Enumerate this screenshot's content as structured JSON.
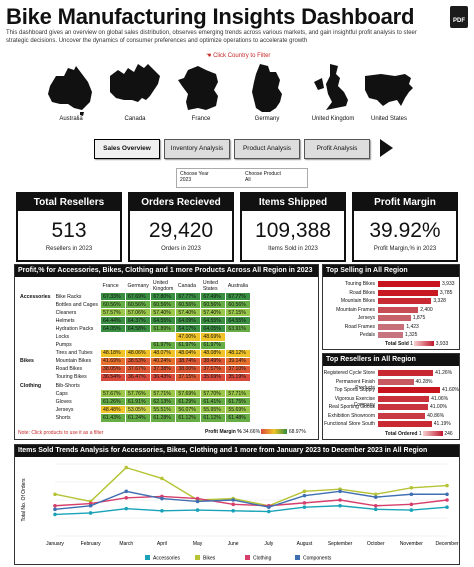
{
  "header": {
    "title": "Bike Manufacturing Insights Dashboard",
    "subtitle": "This dashboard gives an overview on global sales distribution, observes emerging trends across various markets, and gain insightful profit analysis to steer strategic decisions. Uncover the dynamics of consumer preferences and optimize operations to accelerate growth",
    "pdf_label": "PDF",
    "filter_hint": "Click Country to Filter"
  },
  "countries": [
    "Australia",
    "Canada",
    "France",
    "Germany",
    "United Kingdom",
    "United States"
  ],
  "nav": {
    "tabs": [
      "Sales Overview",
      "Inventory Analysis",
      "Product Analysis",
      "Profit Analysis"
    ],
    "active": "Sales Overview"
  },
  "chooser": {
    "year_label": "Choose Year",
    "year_value": "2023",
    "product_label": "Choose Product",
    "product_value": "All"
  },
  "kpis": [
    {
      "title": "Total Resellers",
      "value": "513",
      "sub": "Resellers in 2023"
    },
    {
      "title": "Orders Recieved",
      "value": "29,420",
      "sub": "Orders in 2023"
    },
    {
      "title": "Items Shipped",
      "value": "109,388",
      "sub": "Items Sold in 2023"
    },
    {
      "title": "Profit Margin",
      "value": "39.92%",
      "sub": "Profit Margin,% in 2023"
    }
  ],
  "heatmap": {
    "title": "Profit,% for Accessories, Bikes, Clothing and 1 more Products Across All Region in 2023",
    "columns": [
      "France",
      "Germany",
      "United Kingdom",
      "Canada",
      "United States",
      "Australia"
    ],
    "rows": [
      {
        "cat": "Accessories",
        "sub": "Bike Racks",
        "vals": [
          "67.33%",
          "67.69%",
          "67.80%",
          "67.77%",
          "67.49%",
          "67.77%"
        ]
      },
      {
        "cat": "",
        "sub": "Bottles and Cages",
        "vals": [
          "60.56%",
          "60.56%",
          "60.56%",
          "60.56%",
          "60.56%",
          "60.56%"
        ]
      },
      {
        "cat": "",
        "sub": "Cleaners",
        "vals": [
          "57.57%",
          "57.06%",
          "57.40%",
          "57.40%",
          "57.40%",
          "57.15%"
        ]
      },
      {
        "cat": "",
        "sub": "Helmets",
        "vals": [
          "64.44%",
          "64.37%",
          "64.55%",
          "64.09%",
          "64.55%",
          "64.55%"
        ]
      },
      {
        "cat": "",
        "sub": "Hydration Packs",
        "vals": [
          "64.05%",
          "64.58%",
          "61.89%",
          "64.17%",
          "64.05%",
          "63.91%"
        ]
      },
      {
        "cat": "",
        "sub": "Locks",
        "vals": [
          "",
          "",
          "",
          "47.00%",
          "48.69%",
          ""
        ]
      },
      {
        "cat": "",
        "sub": "Pumps",
        "vals": [
          "",
          "",
          "61.97%",
          "61.97%",
          "61.97%",
          ""
        ]
      },
      {
        "cat": "",
        "sub": "Tires and Tubes",
        "vals": [
          "48.18%",
          "48.06%",
          "48.07%",
          "48.04%",
          "48.08%",
          "48.12%"
        ]
      },
      {
        "cat": "Bikes",
        "sub": "Mountain Bikes",
        "vals": [
          "41.69%",
          "38.53%",
          "40.24%",
          "38.74%",
          "38.49%",
          "39.14%"
        ]
      },
      {
        "cat": "",
        "sub": "Road Bikes",
        "vals": [
          "38.05%",
          "37.67%",
          "37.38%",
          "38.00%",
          "37.57%",
          "37.10%"
        ]
      },
      {
        "cat": "",
        "sub": "Touring Bikes",
        "vals": [
          "36.54%",
          "36.47%",
          "36.43%",
          "37.15%",
          "35.69%",
          "35.19%"
        ]
      },
      {
        "cat": "Clothing",
        "sub": "Bib-Shorts",
        "vals": [
          "",
          "",
          "",
          "",
          "",
          ""
        ]
      },
      {
        "cat": "",
        "sub": "Caps",
        "vals": [
          "57.67%",
          "57.76%",
          "57.71%",
          "57.69%",
          "57.70%",
          "57.71%"
        ]
      },
      {
        "cat": "",
        "sub": "Gloves",
        "vals": [
          "61.26%",
          "61.91%",
          "62.13%",
          "61.29%",
          "61.41%",
          "61.75%"
        ]
      },
      {
        "cat": "",
        "sub": "Jerseys",
        "vals": [
          "48.48%",
          "53.05%",
          "55.51%",
          "56.07%",
          "55.95%",
          "55.69%"
        ]
      },
      {
        "cat": "",
        "sub": "Shorts",
        "vals": [
          "61.43%",
          "61.24%",
          "61.28%",
          "61.12%",
          "61.12%",
          "61.48%"
        ]
      }
    ],
    "note": "Note: Click products to use it as a filter",
    "legend_label": "Profit Margin %",
    "legend_min": "34.66%",
    "legend_max": "68.97%"
  },
  "top_selling": {
    "title": "Top Selling in All Region",
    "items": [
      {
        "name": "Touring Bikes",
        "label": "3,933",
        "value": 3933
      },
      {
        "name": "Road Bikes",
        "label": "3,785",
        "value": 3785
      },
      {
        "name": "Mountain Bikes",
        "label": "3,328",
        "value": 3328
      },
      {
        "name": "Mountain Frames",
        "label": "2,400",
        "value": 2400
      },
      {
        "name": "Jerseys",
        "label": "1,875",
        "value": 1875
      },
      {
        "name": "Road Frames",
        "label": "1,423",
        "value": 1423
      },
      {
        "name": "Pedals",
        "label": "1,325",
        "value": 1325
      }
    ],
    "legend_label": "Total Sold",
    "legend_min": "1",
    "legend_max": "3,933"
  },
  "top_resellers": {
    "title": "Top Resellers in All Region",
    "items": [
      {
        "name": "Registered Cycle Store",
        "label": "41.26%",
        "value": 41.26
      },
      {
        "name": "Permanent Finish Products",
        "label": "40.28%",
        "value": 40.28
      },
      {
        "name": "Top Sports Supply",
        "label": "41.60%",
        "value": 41.6
      },
      {
        "name": "Vigorous Exercise Company",
        "label": "41.06%",
        "value": 41.06
      },
      {
        "name": "Real Sporting Goods",
        "label": "41.00%",
        "value": 41.0
      },
      {
        "name": "Exhibition Showroom",
        "label": "40.86%",
        "value": 40.86
      },
      {
        "name": "Functional Store South",
        "label": "41.19%",
        "value": 41.19
      }
    ],
    "legend_label": "Total Ordered",
    "legend_min": "1",
    "legend_max": "246"
  },
  "trend": {
    "title": "Items Sold Trends Analysis  for Accessories, Bikes, Clothing and 1 more from January 2023 to December 2023 in All Region"
  },
  "chart_data": {
    "type": "line",
    "title": "Items Sold Trends Analysis  for Accessories, Bikes, Clothing and 1 more from January 2023 to December 2023 in All Region",
    "xlabel": "",
    "ylabel": "Total No. Of Orders",
    "categories": [
      "January",
      "February",
      "March",
      "April",
      "May",
      "June",
      "July",
      "August",
      "September",
      "October",
      "November",
      "December"
    ],
    "ylim": [
      0,
      100
    ],
    "series": [
      {
        "name": "Accessories",
        "color": "#1aa3b8",
        "values": [
          30,
          32,
          38,
          35,
          36,
          35,
          34,
          40,
          42,
          37,
          36,
          40
        ]
      },
      {
        "name": "Bikes",
        "color": "#b5c334",
        "values": [
          58,
          48,
          95,
          80,
          50,
          52,
          42,
          62,
          65,
          58,
          67,
          70
        ]
      },
      {
        "name": "Clothing",
        "color": "#d63e6b",
        "values": [
          42,
          45,
          53,
          55,
          52,
          44,
          42,
          46,
          50,
          42,
          44,
          50
        ]
      },
      {
        "name": "Components",
        "color": "#3f6fb0",
        "values": [
          37,
          42,
          62,
          52,
          48,
          50,
          40,
          56,
          62,
          54,
          58,
          58
        ]
      }
    ]
  }
}
